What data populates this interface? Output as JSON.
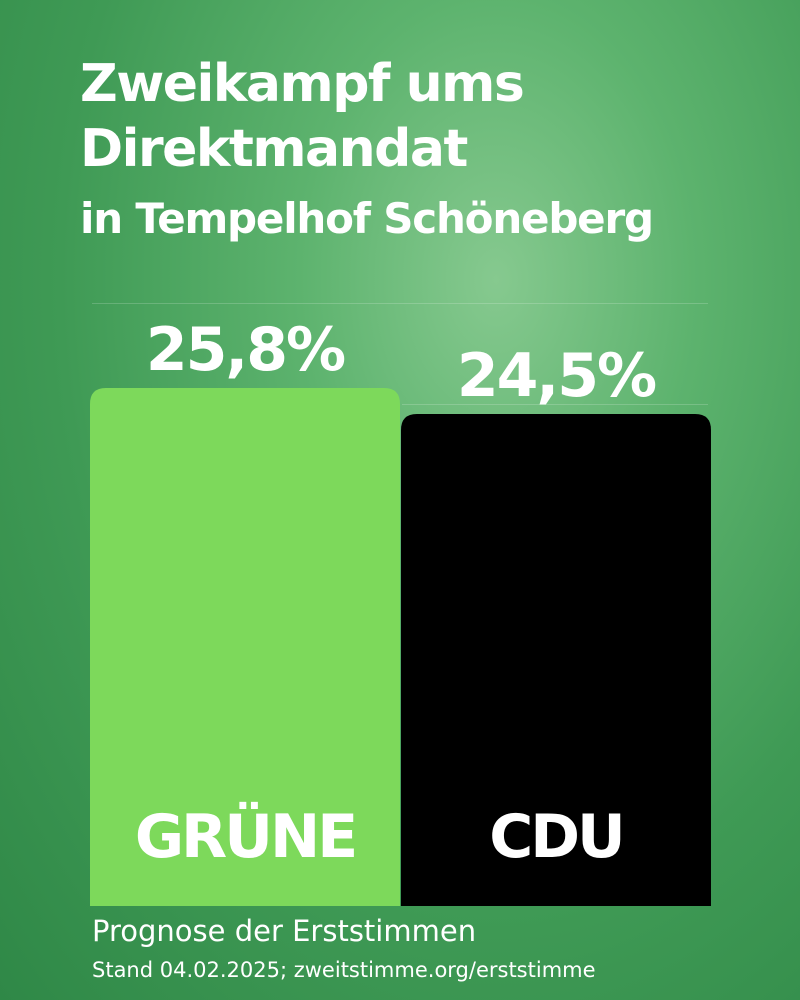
{
  "title_lines": [
    "Zweikampf ums",
    "Direktmandat",
    "in Tempelhof Schöneberg"
  ],
  "chart_data": {
    "type": "bar",
    "categories": [
      "GRÜNE",
      "CDU"
    ],
    "values": [
      25.8,
      24.5
    ],
    "value_labels": [
      "25,8%",
      "24,5%"
    ],
    "colors": [
      "#7dd95b",
      "#000000"
    ],
    "category_label_color": "#ffffff",
    "value_label_color": "#ffffff",
    "ylim": [
      0,
      25.8
    ],
    "grid": false,
    "legend": "none"
  },
  "footer": {
    "line1": "Prognose der Erststimmen",
    "line2": "Stand 04.02.2025; zweitstimme.org/erststimme"
  }
}
